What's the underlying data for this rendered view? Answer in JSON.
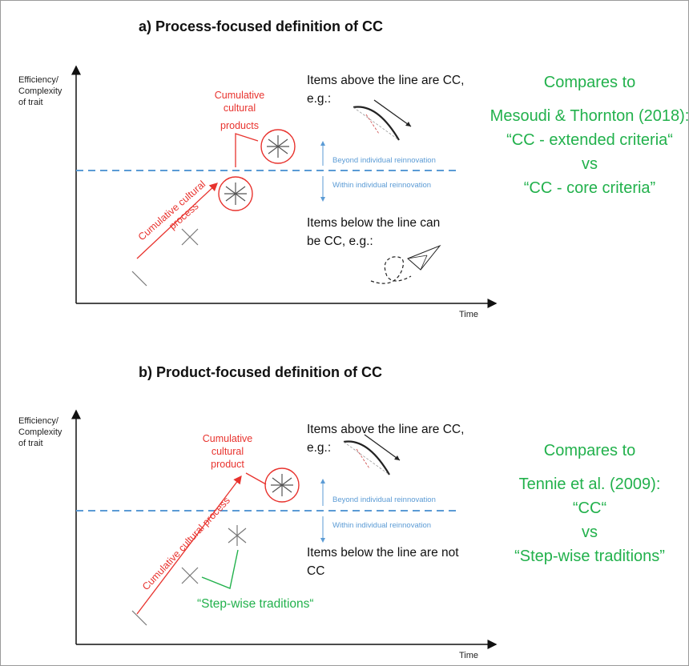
{
  "colors": {
    "red": "#e8332e",
    "blue": "#5b9bd5",
    "green": "#22b14c",
    "black": "#111111"
  },
  "panel_a": {
    "title": "a) Process-focused definition of CC",
    "y_label_1": "Efficiency/",
    "y_label_2": "Complexity",
    "y_label_3": "of trait",
    "x_label": "Time",
    "products_label": [
      "Cumulative",
      "cultural",
      "products"
    ],
    "process_label": [
      "Cumulative cultural",
      "process"
    ],
    "beyond_label": "Beyond individual reinnovation",
    "within_label": "Within individual reinnovation",
    "above_text": [
      "Items above the line are CC,",
      "e.g.:"
    ],
    "below_text": [
      "Items below the line can",
      "be CC, e.g.:"
    ],
    "compares_label": "Compares to",
    "comparison": [
      "Mesoudi & Thornton (2018):",
      "“CC - extended criteria“",
      "vs",
      "“CC - core criteria”"
    ]
  },
  "panel_b": {
    "title": "b) Product-focused definition of CC",
    "y_label_1": "Efficiency/",
    "y_label_2": "Complexity",
    "y_label_3": "of trait",
    "x_label": "Time",
    "product_label": [
      "Cumulative",
      "cultural",
      "product"
    ],
    "process_label": "Cumulative cultural process",
    "beyond_label": "Beyond individual reinnovation",
    "within_label": "Within individual reinnovation",
    "above_text": [
      "Items above the line are CC,",
      "e.g.:"
    ],
    "below_text": [
      "Items below the line are not",
      "CC"
    ],
    "stepwise_label": "“Step-wise traditions“",
    "compares_label": "Compares to",
    "comparison": [
      "Tennie et al. (2009):",
      "“CC“",
      "vs",
      "“Step-wise traditions”"
    ]
  },
  "icons": [
    "stick-icon",
    "cross-icon",
    "asterisk-icon",
    "circled-asterisk-icon",
    "bow-and-arrow-icon",
    "paper-plane-icon"
  ]
}
